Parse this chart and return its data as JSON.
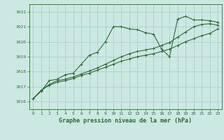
{
  "background_color": "#cce8e3",
  "plot_bg_color": "#cce8e3",
  "grid_color": "#aacfc9",
  "line_color": "#2d6b35",
  "title": "Graphe pression niveau de la mer (hPa)",
  "xlim": [
    -0.5,
    23.5
  ],
  "ylim": [
    1015.5,
    1022.5
  ],
  "yticks": [
    1016,
    1017,
    1018,
    1019,
    1020,
    1021,
    1022
  ],
  "xticks": [
    0,
    1,
    2,
    3,
    4,
    5,
    6,
    7,
    8,
    9,
    10,
    11,
    12,
    13,
    14,
    15,
    16,
    17,
    18,
    19,
    20,
    21,
    22,
    23
  ],
  "series1": [
    1016.2,
    1016.7,
    1017.4,
    1017.5,
    1017.8,
    1017.9,
    1018.5,
    1019.1,
    1019.3,
    1020.0,
    1021.0,
    1021.0,
    1020.85,
    1020.8,
    1020.6,
    1020.5,
    1019.5,
    1019.0,
    1021.5,
    1021.7,
    1021.45,
    1021.45,
    1021.4,
    1021.3
  ],
  "series2": [
    1016.2,
    1016.75,
    1017.15,
    1017.4,
    1017.5,
    1017.65,
    1017.85,
    1018.05,
    1018.25,
    1018.5,
    1018.75,
    1019.0,
    1019.2,
    1019.35,
    1019.45,
    1019.55,
    1019.75,
    1019.95,
    1020.3,
    1020.65,
    1021.0,
    1021.15,
    1021.2,
    1021.1
  ],
  "series3": [
    1016.2,
    1016.75,
    1017.1,
    1017.3,
    1017.4,
    1017.55,
    1017.75,
    1017.9,
    1018.1,
    1018.3,
    1018.5,
    1018.7,
    1018.85,
    1019.0,
    1019.1,
    1019.2,
    1019.35,
    1019.5,
    1019.75,
    1020.0,
    1020.2,
    1020.4,
    1020.55,
    1020.85
  ]
}
